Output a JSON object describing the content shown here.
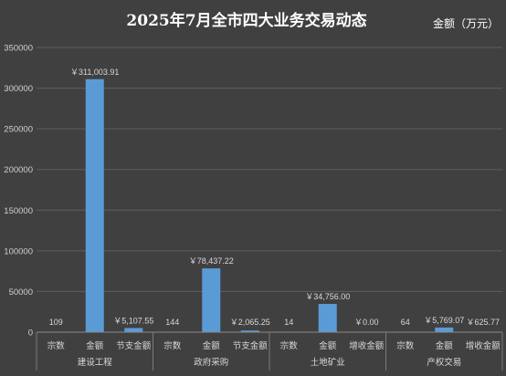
{
  "chart_data": {
    "type": "bar",
    "title": "2025年7月全市四大业务交易动态",
    "unit_label": "金额（万元）",
    "ylim": [
      0,
      350000
    ],
    "yticks": [
      "0",
      "50000",
      "100000",
      "150000",
      "200000",
      "250000",
      "300000",
      "350000"
    ],
    "grid": true,
    "background": "#404040",
    "bar_color": "#5b9bd5",
    "groups": [
      {
        "name": "建设工程",
        "items": [
          {
            "category": "宗数",
            "value": 109,
            "label": "109"
          },
          {
            "category": "金额",
            "value": 311003.91,
            "label": "￥311,003.91"
          },
          {
            "category": "节支金额",
            "value": 5107.55,
            "label": "￥5,107.55"
          }
        ]
      },
      {
        "name": "政府采购",
        "items": [
          {
            "category": "宗数",
            "value": 144,
            "label": "144"
          },
          {
            "category": "金额",
            "value": 78437.22,
            "label": "￥78,437.22"
          },
          {
            "category": "节支金额",
            "value": 2065.25,
            "label": "￥2,065.25"
          }
        ]
      },
      {
        "name": "土地矿业",
        "items": [
          {
            "category": "宗数",
            "value": 14,
            "label": "14"
          },
          {
            "category": "金额",
            "value": 34756.0,
            "label": "￥34,756.00"
          },
          {
            "category": "增收金额",
            "value": 0.0,
            "label": "￥0.00"
          }
        ]
      },
      {
        "name": "产权交易",
        "items": [
          {
            "category": "宗数",
            "value": 64,
            "label": "64"
          },
          {
            "category": "金额",
            "value": 5769.07,
            "label": "￥5,769.07"
          },
          {
            "category": "增收金额",
            "value": 625.77,
            "label": "￥625.77"
          }
        ]
      }
    ]
  }
}
